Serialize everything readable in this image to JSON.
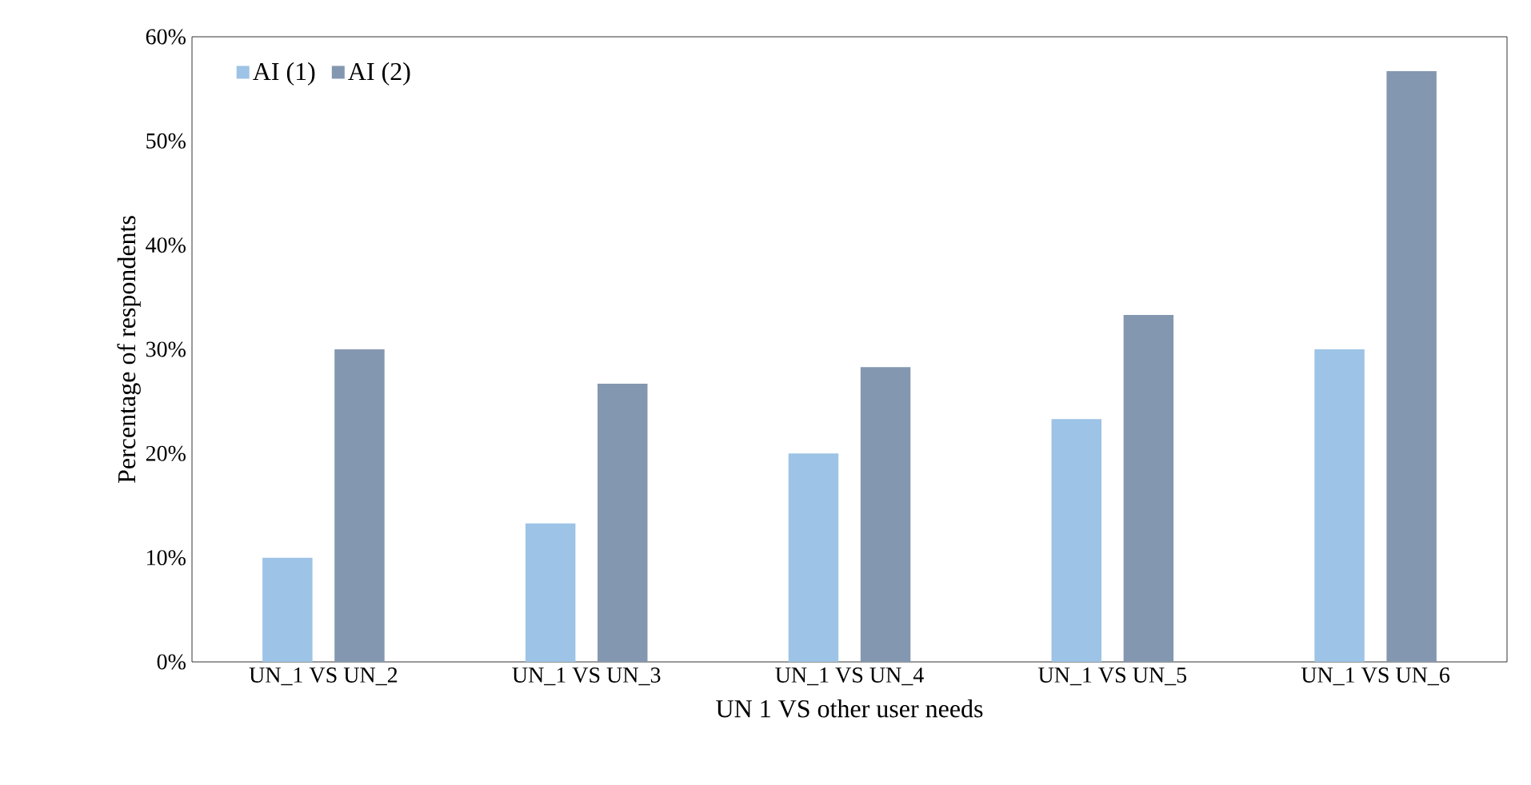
{
  "chart_data": {
    "type": "bar",
    "xlabel": "UN  1  VS  other user needs",
    "ylabel": "Percentage of respondents",
    "categories": [
      "UN_1 VS UN_2",
      "UN_1 VS UN_3",
      "UN_1 VS UN_4",
      "UN_1 VS UN_5",
      "UN_1 VS UN_6"
    ],
    "series": [
      {
        "name": "AI (1)",
        "color": "#9dc3e6",
        "values": [
          10,
          13.3,
          20,
          23.3,
          30
        ]
      },
      {
        "name": "AI (2)",
        "color": "#8497b0",
        "values": [
          30,
          26.7,
          28.3,
          33.3,
          56.7
        ]
      }
    ],
    "ylim": [
      0,
      60
    ],
    "yticks": [
      {
        "value": 0,
        "label": "0%"
      },
      {
        "value": 10,
        "label": "10%"
      },
      {
        "value": 20,
        "label": "20%"
      },
      {
        "value": 30,
        "label": "30%"
      },
      {
        "value": 40,
        "label": "40%"
      },
      {
        "value": 50,
        "label": "50%"
      },
      {
        "value": 60,
        "label": "60%"
      }
    ],
    "grid": false,
    "legend": "top left"
  }
}
